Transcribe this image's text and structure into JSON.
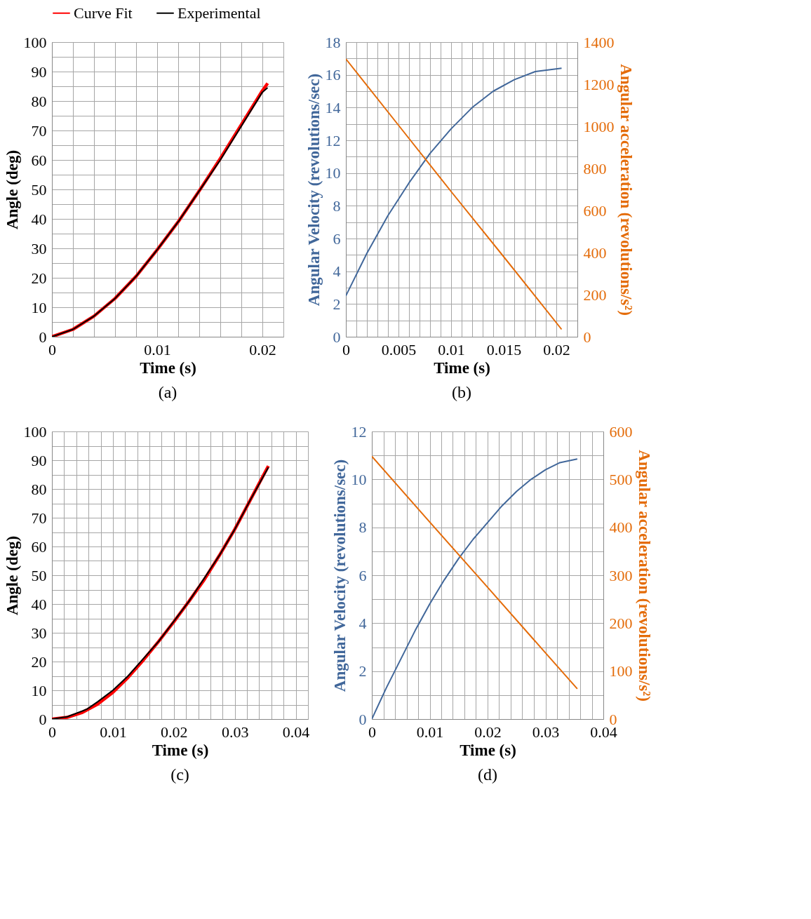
{
  "chart_data": [
    {
      "type": "line",
      "xlabel": "Time (s)",
      "ylabel": "Angle (deg)",
      "annotations": [
        "(a)"
      ],
      "legend": "top",
      "grid": true,
      "xlim": [
        0,
        0.022
      ],
      "ylim": [
        0,
        100
      ],
      "xticks": [
        0,
        {
          "value": 0.002,
          "label": null
        },
        {
          "value": 0.004,
          "label": null
        },
        {
          "value": 0.006,
          "label": null
        },
        {
          "value": 0.008,
          "label": null
        },
        0.01,
        {
          "value": 0.012,
          "label": null
        },
        {
          "value": 0.014,
          "label": null
        },
        {
          "value": 0.016,
          "label": null
        },
        {
          "value": 0.018,
          "label": null
        },
        0.02,
        {
          "value": 0.022,
          "label": null
        }
      ],
      "yticks": [
        0,
        {
          "value": 5,
          "label": null
        },
        10,
        {
          "value": 15,
          "label": null
        },
        20,
        {
          "value": 25,
          "label": null
        },
        30,
        {
          "value": 35,
          "label": null
        },
        40,
        {
          "value": 45,
          "label": null
        },
        50,
        {
          "value": 55,
          "label": null
        },
        60,
        {
          "value": 65,
          "label": null
        },
        70,
        {
          "value": 75,
          "label": null
        },
        80,
        {
          "value": 85,
          "label": null
        },
        90,
        {
          "value": 95,
          "label": null
        },
        100
      ],
      "series": [
        {
          "name": "Curve Fit",
          "color": "#ff0000",
          "x": [
            0,
            0.002,
            0.004,
            0.006,
            0.008,
            0.01,
            0.012,
            0.014,
            0.016,
            0.018,
            0.02,
            0.0205
          ],
          "values": [
            0,
            2.5,
            7,
            13,
            20.5,
            29.5,
            39,
            49.5,
            60.5,
            72,
            83.5,
            86
          ]
        },
        {
          "name": "Experimental",
          "color": "#000000",
          "x": [
            0,
            0.002,
            0.004,
            0.006,
            0.008,
            0.01,
            0.012,
            0.014,
            0.016,
            0.018,
            0.02,
            0.0205
          ],
          "values": [
            0,
            2.5,
            7,
            13,
            20.5,
            29.5,
            39,
            49.5,
            60,
            71.5,
            83,
            84.5
          ]
        }
      ]
    },
    {
      "type": "line",
      "xlabel": "Time (s)",
      "ylabel": "Angular Velocity (revolutions/sec)",
      "y2label": "Angular acceleration (revolutions/s²)",
      "annotations": [
        "(b)"
      ],
      "grid": true,
      "xlim": [
        0,
        0.022
      ],
      "ylim": [
        0,
        18
      ],
      "y2lim": [
        0,
        1400
      ],
      "xticks": [
        0,
        {
          "value": 0.001,
          "label": null
        },
        {
          "value": 0.002,
          "label": null
        },
        {
          "value": 0.003,
          "label": null
        },
        {
          "value": 0.004,
          "label": null
        },
        0.005,
        {
          "value": 0.006,
          "label": null
        },
        {
          "value": 0.007,
          "label": null
        },
        {
          "value": 0.008,
          "label": null
        },
        {
          "value": 0.009,
          "label": null
        },
        0.01,
        {
          "value": 0.011,
          "label": null
        },
        {
          "value": 0.012,
          "label": null
        },
        {
          "value": 0.013,
          "label": null
        },
        {
          "value": 0.014,
          "label": null
        },
        0.015,
        {
          "value": 0.016,
          "label": null
        },
        {
          "value": 0.017,
          "label": null
        },
        {
          "value": 0.018,
          "label": null
        },
        {
          "value": 0.019,
          "label": null
        },
        0.02,
        {
          "value": 0.021,
          "label": null
        },
        {
          "value": 0.022,
          "label": null
        }
      ],
      "yticks": [
        0,
        {
          "value": 1,
          "label": null
        },
        2,
        {
          "value": 3,
          "label": null
        },
        4,
        {
          "value": 5,
          "label": null
        },
        6,
        {
          "value": 7,
          "label": null
        },
        8,
        {
          "value": 9,
          "label": null
        },
        10,
        {
          "value": 11,
          "label": null
        },
        12,
        {
          "value": 13,
          "label": null
        },
        14,
        {
          "value": 15,
          "label": null
        },
        16,
        {
          "value": 17,
          "label": null
        },
        18
      ],
      "y2ticks": [
        0,
        200,
        400,
        600,
        800,
        1000,
        1200,
        1400
      ],
      "series": [
        {
          "color": "#41679a",
          "x": [
            0,
            0.002,
            0.004,
            0.006,
            0.008,
            0.01,
            0.012,
            0.014,
            0.016,
            0.018,
            0.0205
          ],
          "values": [
            2.5,
            5.1,
            7.4,
            9.4,
            11.2,
            12.7,
            14.0,
            15.0,
            15.7,
            16.2,
            16.4
          ]
        },
        {
          "color": "#e46c0a",
          "axis": "y2",
          "x": [
            0,
            0.005,
            0.01,
            0.015,
            0.0205
          ],
          "values": [
            1320,
            1005,
            690,
            380,
            35
          ]
        }
      ]
    },
    {
      "type": "line",
      "xlabel": "Time (s)",
      "ylabel": "Angle (deg)",
      "annotations": [
        "(c)"
      ],
      "legend": "top",
      "grid": true,
      "xlim": [
        0,
        0.042
      ],
      "ylim": [
        0,
        100
      ],
      "xticks": [
        0,
        {
          "value": 0.002,
          "label": null
        },
        {
          "value": 0.004,
          "label": null
        },
        {
          "value": 0.006,
          "label": null
        },
        {
          "value": 0.008,
          "label": null
        },
        0.01,
        {
          "value": 0.012,
          "label": null
        },
        {
          "value": 0.014,
          "label": null
        },
        {
          "value": 0.016,
          "label": null
        },
        {
          "value": 0.018,
          "label": null
        },
        0.02,
        {
          "value": 0.022,
          "label": null
        },
        {
          "value": 0.024,
          "label": null
        },
        {
          "value": 0.026,
          "label": null
        },
        {
          "value": 0.028,
          "label": null
        },
        0.03,
        {
          "value": 0.032,
          "label": null
        },
        {
          "value": 0.034,
          "label": null
        },
        {
          "value": 0.036,
          "label": null
        },
        {
          "value": 0.038,
          "label": null
        },
        0.04,
        {
          "value": 0.042,
          "label": null
        }
      ],
      "yticks": [
        0,
        {
          "value": 5,
          "label": null
        },
        10,
        {
          "value": 15,
          "label": null
        },
        20,
        {
          "value": 25,
          "label": null
        },
        30,
        {
          "value": 35,
          "label": null
        },
        40,
        {
          "value": 45,
          "label": null
        },
        50,
        {
          "value": 55,
          "label": null
        },
        60,
        {
          "value": 65,
          "label": null
        },
        70,
        {
          "value": 75,
          "label": null
        },
        80,
        {
          "value": 85,
          "label": null
        },
        90,
        {
          "value": 95,
          "label": null
        },
        100
      ],
      "series": [
        {
          "name": "Curve Fit",
          "color": "#ff0000",
          "x": [
            0,
            0.0025,
            0.005,
            0.0075,
            0.01,
            0.0125,
            0.015,
            0.0175,
            0.02,
            0.0225,
            0.025,
            0.0275,
            0.03,
            0.0325,
            0.0355
          ],
          "values": [
            0,
            0.6,
            2.3,
            5.2,
            9.3,
            14.5,
            20.5,
            27,
            33.8,
            41,
            48.5,
            57,
            66,
            76,
            88
          ]
        },
        {
          "name": "Experimental",
          "color": "#000000",
          "x": [
            0,
            0.0025,
            0.005,
            0.0058,
            0.0075,
            0.01,
            0.0125,
            0.015,
            0.0175,
            0.02,
            0.0225,
            0.025,
            0.0275,
            0.03,
            0.0325,
            0.0355
          ],
          "values": [
            0,
            0.8,
            2.8,
            3.5,
            6,
            10,
            15,
            21,
            27,
            34,
            41,
            49,
            57,
            66,
            76,
            87.5
          ]
        }
      ]
    },
    {
      "type": "line",
      "xlabel": "Time (s)",
      "ylabel": "Angular Velocity (revolutions/sec)",
      "y2label": "Angular acceleration (revolutions/s²)",
      "annotations": [
        "(d)"
      ],
      "grid": true,
      "xlim": [
        0,
        0.04
      ],
      "ylim": [
        0,
        12
      ],
      "y2lim": [
        0,
        600
      ],
      "xticks": [
        0,
        {
          "value": 0.002,
          "label": null
        },
        {
          "value": 0.004,
          "label": null
        },
        {
          "value": 0.006,
          "label": null
        },
        {
          "value": 0.008,
          "label": null
        },
        0.01,
        {
          "value": 0.012,
          "label": null
        },
        {
          "value": 0.014,
          "label": null
        },
        {
          "value": 0.016,
          "label": null
        },
        {
          "value": 0.018,
          "label": null
        },
        0.02,
        {
          "value": 0.022,
          "label": null
        },
        {
          "value": 0.024,
          "label": null
        },
        {
          "value": 0.026,
          "label": null
        },
        {
          "value": 0.028,
          "label": null
        },
        0.03,
        {
          "value": 0.032,
          "label": null
        },
        {
          "value": 0.034,
          "label": null
        },
        {
          "value": 0.036,
          "label": null
        },
        {
          "value": 0.038,
          "label": null
        },
        0.04
      ],
      "yticks": [
        0,
        {
          "value": 1,
          "label": null
        },
        2,
        {
          "value": 3,
          "label": null
        },
        4,
        {
          "value": 5,
          "label": null
        },
        6,
        {
          "value": 7,
          "label": null
        },
        8,
        {
          "value": 9,
          "label": null
        },
        10,
        {
          "value": 11,
          "label": null
        },
        12
      ],
      "y2ticks": [
        0,
        100,
        200,
        300,
        400,
        500,
        600
      ],
      "series": [
        {
          "color": "#41679a",
          "x": [
            0,
            0.0025,
            0.005,
            0.0075,
            0.01,
            0.0125,
            0.015,
            0.0175,
            0.02,
            0.0225,
            0.025,
            0.0275,
            0.03,
            0.0325,
            0.0355
          ],
          "values": [
            0,
            1.3,
            2.5,
            3.7,
            4.8,
            5.8,
            6.7,
            7.5,
            8.2,
            8.9,
            9.5,
            10.0,
            10.4,
            10.7,
            10.85
          ]
        },
        {
          "color": "#e46c0a",
          "axis": "y2",
          "x": [
            0,
            0.01,
            0.02,
            0.03,
            0.0355
          ],
          "values": [
            548,
            411,
            275,
            138,
            63
          ]
        }
      ]
    }
  ]
}
